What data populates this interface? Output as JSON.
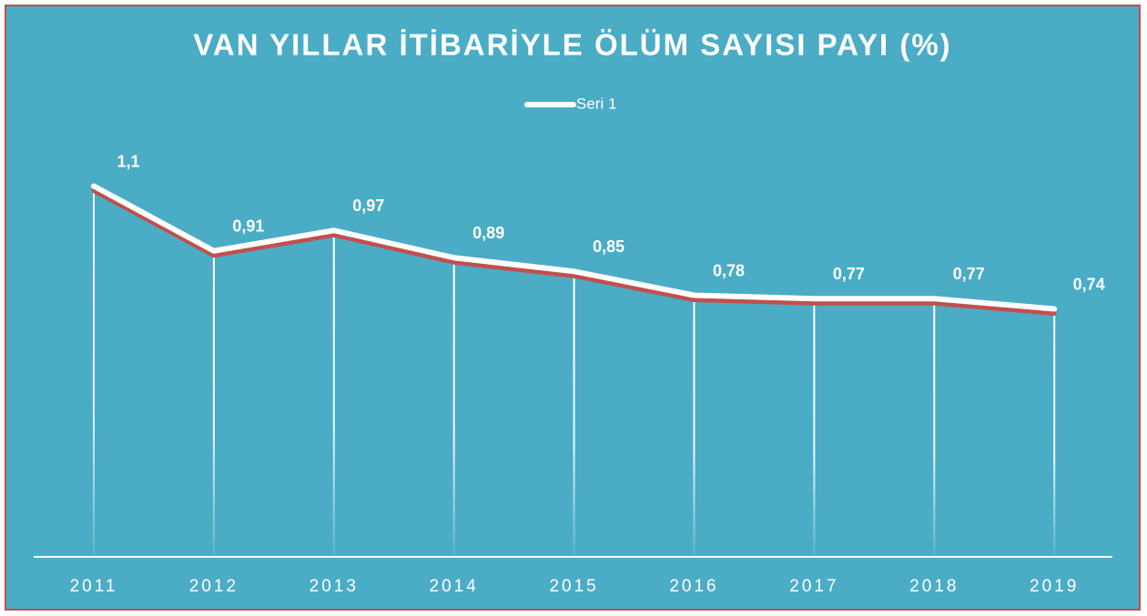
{
  "chart_data": {
    "type": "line",
    "title": "VAN YILLAR İTİBARİYLE ÖLÜM SAYISI PAYI (%)",
    "categories": [
      "2011",
      "2012",
      "2013",
      "2014",
      "2015",
      "2016",
      "2017",
      "2018",
      "2019"
    ],
    "series": [
      {
        "name": "Seri 1",
        "color": "#ffffff",
        "values": [
          1.1,
          0.91,
          0.97,
          0.89,
          0.85,
          0.78,
          0.77,
          0.77,
          0.74
        ],
        "value_labels": [
          "1,1",
          "0,91",
          "0,97",
          "0,89",
          "0,85",
          "0,78",
          "0,77",
          "0,77",
          "0,74"
        ]
      }
    ],
    "ylim": [
      0,
      1.2
    ],
    "legend": "top"
  }
}
